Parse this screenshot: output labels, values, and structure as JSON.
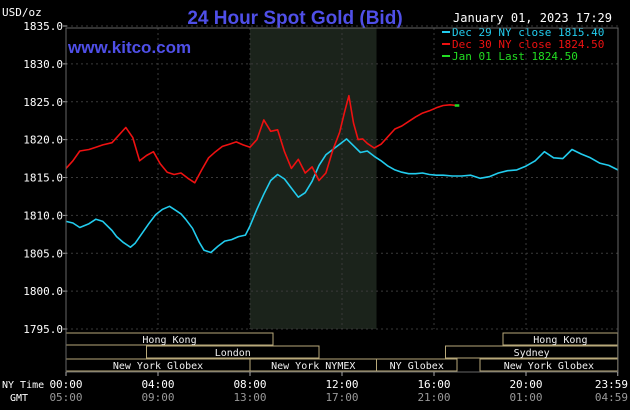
{
  "chart_data": {
    "type": "line",
    "title": "24 Hour Spot Gold (Bid)",
    "ylabel": "USD/oz",
    "timestamp": "January 01, 2023 17:29",
    "watermark": "www.kitco.com",
    "ylim": [
      1795.0,
      1835.0
    ],
    "y_ticks": [
      "1835.0",
      "1830.0",
      "1825.0",
      "1820.0",
      "1815.0",
      "1810.0",
      "1805.0",
      "1800.0",
      "1795.0"
    ],
    "x_row_label_ny": "NY Time",
    "x_row_label_gmt": "GMT",
    "x_ticks_ny": [
      "00:00",
      "04:00",
      "08:00",
      "12:00",
      "16:00",
      "20:00",
      "23:59"
    ],
    "x_ticks_gmt": [
      "05:00",
      "09:00",
      "13:00",
      "17:00",
      "21:00",
      "01:00",
      "04:59"
    ],
    "legend": [
      {
        "label": "Dec 29 NY close 1815.40",
        "color": "#22ccee"
      },
      {
        "label": "Dec 30 NY close 1824.50",
        "color": "#ee1111"
      },
      {
        "label": "Jan 01 Last 1824.50",
        "color": "#22dd22"
      }
    ],
    "shaded_session": {
      "start_hour": 8.0,
      "end_hour": 13.5
    },
    "sessions": [
      {
        "name": "Hong Kong",
        "start": 0.0,
        "end": 9.0,
        "row": 0
      },
      {
        "name": "London",
        "start": 3.5,
        "end": 11.0,
        "row": 1
      },
      {
        "name": "New York Globex",
        "start": 0.0,
        "end": 8.0,
        "row": 2
      },
      {
        "name": "New York NYMEX",
        "start": 8.0,
        "end": 13.5,
        "row": 2
      },
      {
        "name": "NY Globex",
        "start": 13.5,
        "end": 17.0,
        "row": 2
      },
      {
        "name": "Hong Kong",
        "start": 19.0,
        "end": 23.99,
        "row": 0
      },
      {
        "name": "Sydney",
        "start": 16.5,
        "end": 23.99,
        "row": 1
      },
      {
        "name": "New York Globex",
        "start": 18.0,
        "end": 23.99,
        "row": 2
      }
    ],
    "series": [
      {
        "name": "Dec 29",
        "color": "#22ccee",
        "x": [
          0.0,
          0.3,
          0.6,
          1.0,
          1.3,
          1.6,
          2.0,
          2.2,
          2.5,
          2.8,
          3.0,
          3.3,
          3.6,
          3.9,
          4.2,
          4.5,
          4.8,
          5.0,
          5.2,
          5.5,
          5.8,
          6.0,
          6.3,
          6.6,
          6.9,
          7.2,
          7.5,
          7.8,
          8.0,
          8.3,
          8.6,
          8.9,
          9.2,
          9.5,
          9.8,
          10.1,
          10.4,
          10.7,
          11.0,
          11.3,
          11.6,
          11.9,
          12.2,
          12.5,
          12.8,
          13.1,
          13.4,
          13.7,
          14.0,
          14.3,
          14.6,
          14.9,
          15.2,
          15.5,
          15.8,
          16.1,
          16.4,
          16.8,
          17.2,
          17.6,
          18.0,
          18.4,
          18.8,
          19.2,
          19.6,
          20.0,
          20.4,
          20.8,
          21.2,
          21.6,
          22.0,
          22.4,
          22.8,
          23.2,
          23.6,
          23.99
        ],
        "values": [
          1809.2,
          1809.0,
          1808.4,
          1808.9,
          1809.5,
          1809.2,
          1808.0,
          1807.2,
          1806.4,
          1805.8,
          1806.3,
          1807.6,
          1808.9,
          1810.1,
          1810.8,
          1811.2,
          1810.6,
          1810.2,
          1809.5,
          1808.3,
          1806.4,
          1805.4,
          1805.1,
          1805.9,
          1806.6,
          1806.8,
          1807.2,
          1807.4,
          1808.6,
          1810.8,
          1812.8,
          1814.6,
          1815.4,
          1814.8,
          1813.6,
          1812.4,
          1813.0,
          1814.5,
          1816.6,
          1818.0,
          1818.7,
          1819.4,
          1820.1,
          1819.2,
          1818.3,
          1818.5,
          1817.8,
          1817.2,
          1816.5,
          1816.0,
          1815.7,
          1815.5,
          1815.5,
          1815.6,
          1815.4,
          1815.3,
          1815.3,
          1815.2,
          1815.2,
          1815.3,
          1814.9,
          1815.1,
          1815.6,
          1815.9,
          1816.0,
          1816.5,
          1817.2,
          1818.4,
          1817.6,
          1817.5,
          1818.7,
          1818.1,
          1817.6,
          1816.9,
          1816.6,
          1816.0
        ]
      },
      {
        "name": "Dec 30",
        "color": "#ee1111",
        "x": [
          0.0,
          0.3,
          0.6,
          1.0,
          1.3,
          1.6,
          2.0,
          2.3,
          2.6,
          2.9,
          3.2,
          3.5,
          3.8,
          4.1,
          4.4,
          4.7,
          5.0,
          5.3,
          5.6,
          5.9,
          6.2,
          6.5,
          6.8,
          7.1,
          7.4,
          7.7,
          8.0,
          8.3,
          8.6,
          8.9,
          9.2,
          9.5,
          9.8,
          10.1,
          10.4,
          10.7,
          11.0,
          11.3,
          11.6,
          11.9,
          12.1,
          12.3,
          12.5,
          12.7,
          12.9,
          13.1,
          13.4,
          13.7,
          14.0,
          14.3,
          14.6,
          14.9,
          15.2,
          15.5,
          15.8,
          16.1,
          16.4,
          16.7,
          17.0
        ],
        "values": [
          1816.2,
          1817.2,
          1818.5,
          1818.7,
          1819.0,
          1819.3,
          1819.6,
          1820.6,
          1821.6,
          1820.3,
          1817.2,
          1817.9,
          1818.4,
          1816.8,
          1815.7,
          1815.4,
          1815.6,
          1814.9,
          1814.3,
          1816.0,
          1817.6,
          1818.4,
          1819.1,
          1819.4,
          1819.7,
          1819.3,
          1819.0,
          1820.0,
          1822.6,
          1821.1,
          1821.3,
          1818.4,
          1816.2,
          1817.4,
          1815.6,
          1816.4,
          1814.6,
          1815.6,
          1818.6,
          1821.0,
          1823.5,
          1825.8,
          1822.2,
          1820.0,
          1820.1,
          1819.5,
          1818.9,
          1819.4,
          1820.4,
          1821.4,
          1821.8,
          1822.4,
          1823.0,
          1823.5,
          1823.8,
          1824.2,
          1824.5,
          1824.6,
          1824.5
        ]
      },
      {
        "name": "Jan 01",
        "color": "#22dd22",
        "x": [
          16.9,
          17.1
        ],
        "values": [
          1824.5,
          1824.5
        ]
      }
    ]
  }
}
